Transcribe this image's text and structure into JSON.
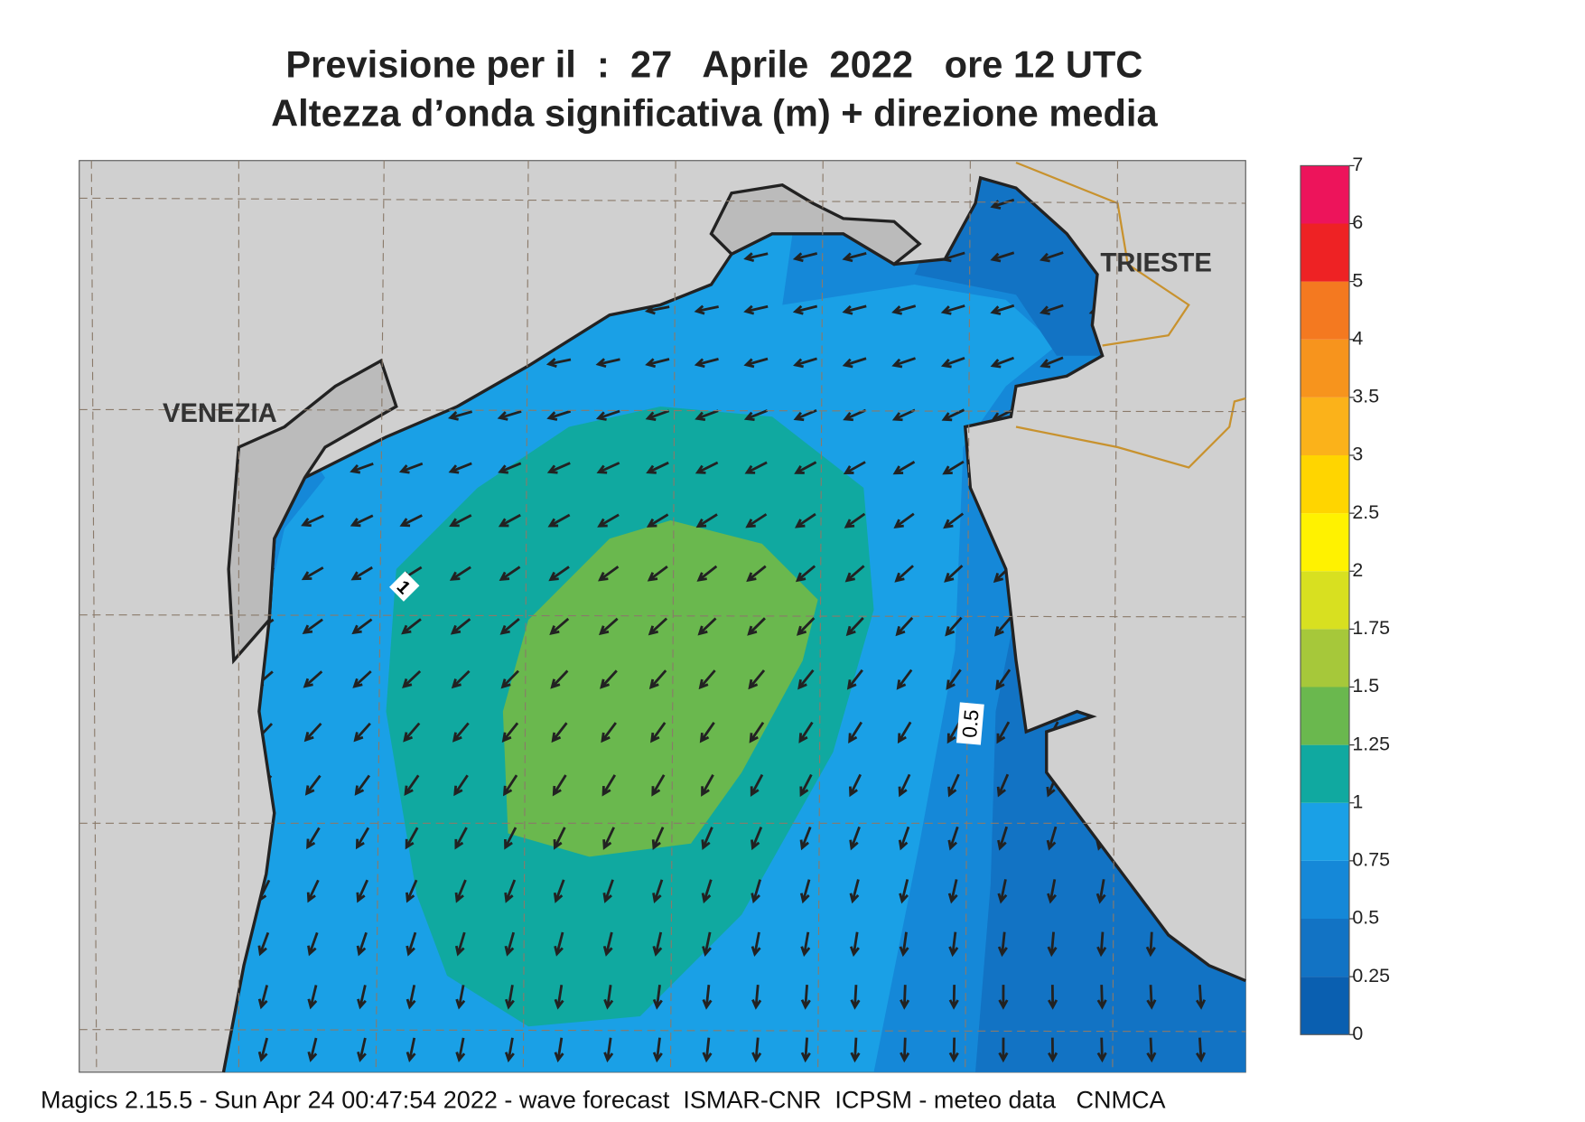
{
  "header": {
    "title_lines": [
      "Previsione per il  :  27   Aprile  2022   ore 12 UTC",
      "Altezza d’onda significativa (m) + direzione media"
    ]
  },
  "map": {
    "cities": [
      "VENEZIA",
      "TRIESTE"
    ],
    "contour_labels": [
      "1",
      "0.5"
    ]
  },
  "colorbar": {
    "levels": [
      0,
      0.25,
      0.5,
      0.75,
      1,
      1.25,
      1.5,
      1.75,
      2,
      2.5,
      3,
      3.5,
      4,
      5,
      6,
      7
    ],
    "colors": [
      "#0a5fb0",
      "#1273c4",
      "#1588d8",
      "#1aa0e6",
      "#10a9a0",
      "#6ab84e",
      "#a6c83a",
      "#d8e020",
      "#fff200",
      "#ffd500",
      "#fbb21a",
      "#f7941d",
      "#f47920",
      "#ee2224",
      "#ed145b"
    ]
  },
  "footer": "Magics 2.15.5 - Sun Apr 24 00:47:54 2022 - wave forecast  ISMAR-CNR  ICPSM - meteo data   CNMCA"
}
